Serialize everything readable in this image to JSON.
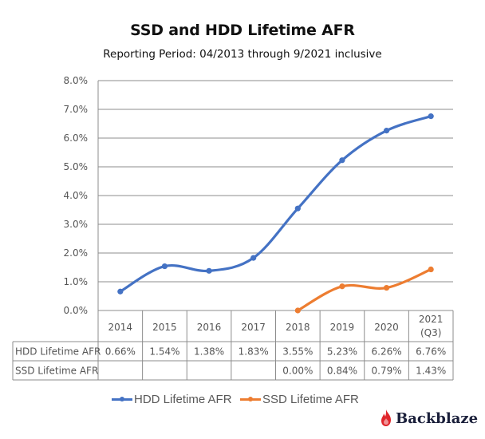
{
  "chart_data": {
    "type": "line",
    "title": "SSD and HDD Lifetime AFR",
    "subtitle": "Reporting Period: 04/2013 through 9/2021 inclusive",
    "categories": [
      "2014",
      "2015",
      "2016",
      "2017",
      "2018",
      "2019",
      "2020",
      "2021 (Q3)"
    ],
    "category_lines": [
      [
        "2014"
      ],
      [
        "2015"
      ],
      [
        "2016"
      ],
      [
        "2017"
      ],
      [
        "2018"
      ],
      [
        "2019"
      ],
      [
        "2020"
      ],
      [
        "2021",
        "(Q3)"
      ]
    ],
    "ylim": [
      0,
      8
    ],
    "yticks": [
      0,
      1,
      2,
      3,
      4,
      5,
      6,
      7,
      8
    ],
    "ytick_labels": [
      "0.0%",
      "1.0%",
      "2.0%",
      "3.0%",
      "4.0%",
      "5.0%",
      "6.0%",
      "7.0%",
      "8.0%"
    ],
    "grid": true,
    "legend_position": "bottom",
    "series": [
      {
        "name": "HDD Lifetime AFR",
        "color": "#4472c4",
        "values": [
          0.66,
          1.54,
          1.38,
          1.83,
          3.55,
          5.23,
          6.26,
          6.76
        ],
        "labels": [
          "0.66%",
          "1.54%",
          "1.38%",
          "1.83%",
          "3.55%",
          "5.23%",
          "6.26%",
          "6.76%"
        ]
      },
      {
        "name": "SSD Lifetime AFR",
        "color": "#ed7d31",
        "values": [
          null,
          null,
          null,
          null,
          0.0,
          0.84,
          0.79,
          1.43
        ],
        "labels": [
          "",
          "",
          "",
          "",
          "0.00%",
          "0.84%",
          "0.79%",
          "1.43%"
        ]
      }
    ],
    "data_table": true
  },
  "header": {
    "title": "SSD and HDD Lifetime AFR",
    "subtitle": "Reporting Period: 04/2013 through 9/2021 inclusive"
  },
  "legend": {
    "items": [
      {
        "label": "HDD Lifetime AFR",
        "color": "#4472c4"
      },
      {
        "label": "SSD Lifetime AFR",
        "color": "#ed7d31"
      }
    ]
  },
  "brand": {
    "name": "Backblaze",
    "icon": "flame-icon",
    "icon_color": "#e0262c"
  }
}
